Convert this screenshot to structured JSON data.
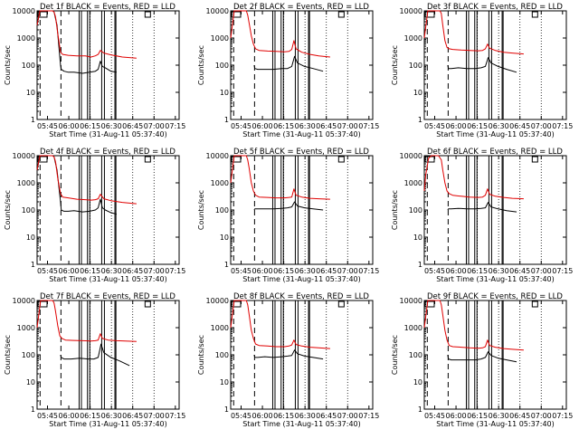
{
  "figure": {
    "x_tick_labels": [
      "05:45",
      "06:00",
      "06:15",
      "06:30",
      "06:45",
      "07:00",
      "07:15"
    ],
    "xlabel": "Start Time (31-Aug-11 05:37:40)",
    "ylabel": "Counts/sec",
    "y_tick_labels": [
      "1",
      "10",
      "100",
      "1000",
      "10000"
    ],
    "colors": {
      "events": "#000000",
      "lld": "#e00000",
      "axes": "#000000"
    }
  },
  "chart_data": [
    {
      "type": "line",
      "title": "Det 1f  BLACK = Events, RED = LLD",
      "xlabel": "Start Time (31-Aug-11 05:37:40)",
      "ylabel": "Counts/sec",
      "ylim": [
        1,
        10000
      ],
      "x_range_minutes": [
        0,
        100
      ],
      "log_y": true,
      "series": [
        {
          "name": "Events",
          "x": [
            0,
            2,
            3.5,
            6,
            9,
            11,
            12,
            14,
            16.5,
            17,
            19,
            22,
            26,
            32,
            37,
            41,
            43,
            44.5,
            46,
            48,
            52,
            56
          ],
          "y": [
            3000,
            10000,
            10000,
            10000,
            10000,
            10000,
            9000,
            3000,
            100,
            70,
            60,
            55,
            55,
            50,
            55,
            60,
            70,
            140,
            90,
            80,
            60,
            55
          ]
        },
        {
          "name": "LLD",
          "x": [
            0,
            2,
            3.5,
            9,
            11,
            12,
            13,
            14.5,
            16.5,
            18,
            22,
            28,
            34,
            38,
            41,
            43,
            44.5,
            47,
            52,
            60,
            70
          ],
          "y": [
            3000,
            10000,
            10000,
            10000,
            10000,
            9000,
            6000,
            1500,
            300,
            250,
            230,
            220,
            220,
            200,
            220,
            250,
            350,
            280,
            240,
            200,
            180
          ]
        }
      ]
    },
    {
      "type": "line",
      "title": "Det 2f  BLACK = Events, RED = LLD",
      "xlabel": "Start Time (31-Aug-11 05:37:40)",
      "ylabel": "Counts/sec",
      "ylim": [
        1,
        10000
      ],
      "x_range_minutes": [
        0,
        100
      ],
      "log_y": true,
      "series": [
        {
          "name": "Events",
          "x": [
            16.5,
            17,
            19,
            24,
            30,
            36,
            40,
            43,
            45,
            47,
            52,
            58,
            65
          ],
          "y": [
            100,
            75,
            70,
            70,
            70,
            75,
            75,
            90,
            210,
            120,
            90,
            75,
            60
          ]
        },
        {
          "name": "LLD",
          "x": [
            0,
            2.5,
            4,
            9,
            11,
            12,
            13,
            14.5,
            16,
            17.5,
            20,
            26,
            32,
            38,
            41,
            43,
            44.5,
            46,
            50,
            56,
            62,
            70
          ],
          "y": [
            1000,
            10000,
            10000,
            10000,
            10000,
            7000,
            3500,
            1200,
            600,
            400,
            350,
            330,
            320,
            310,
            320,
            380,
            800,
            400,
            300,
            250,
            220,
            200
          ]
        }
      ]
    },
    {
      "type": "line",
      "title": "Det 3f  BLACK = Events, RED = LLD",
      "xlabel": "Start Time (31-Aug-11 05:37:40)",
      "ylabel": "Counts/sec",
      "ylim": [
        1,
        10000
      ],
      "x_range_minutes": [
        0,
        100
      ],
      "log_y": true,
      "series": [
        {
          "name": "Events",
          "x": [
            16.5,
            17,
            19,
            24,
            30,
            36,
            40,
            43,
            45,
            47,
            52,
            58,
            65
          ],
          "y": [
            100,
            75,
            75,
            80,
            75,
            75,
            80,
            90,
            190,
            120,
            90,
            70,
            55
          ]
        },
        {
          "name": "LLD",
          "x": [
            0,
            2.5,
            4,
            9,
            11,
            12,
            13,
            14.5,
            16,
            17.5,
            20,
            26,
            32,
            38,
            41,
            43,
            44.5,
            46,
            50,
            56,
            62,
            70
          ],
          "y": [
            1000,
            10000,
            10000,
            10000,
            10000,
            8000,
            3000,
            800,
            450,
            400,
            380,
            360,
            350,
            340,
            350,
            400,
            600,
            420,
            350,
            300,
            280,
            260
          ]
        }
      ]
    },
    {
      "type": "line",
      "title": "Det 4f  BLACK = Events, RED = LLD",
      "xlabel": "Start Time (31-Aug-11 05:37:40)",
      "ylabel": "Counts/sec",
      "ylim": [
        1,
        10000
      ],
      "x_range_minutes": [
        0,
        100
      ],
      "log_y": true,
      "series": [
        {
          "name": "Events",
          "x": [
            0,
            2,
            3.5,
            6,
            9,
            11,
            12,
            14,
            16.5,
            17,
            19,
            22,
            26,
            32,
            37,
            41,
            43,
            44.5,
            46,
            48,
            52,
            56
          ],
          "y": [
            3000,
            10000,
            10000,
            10000,
            10000,
            10000,
            9000,
            3000,
            200,
            100,
            90,
            90,
            95,
            85,
            90,
            100,
            120,
            250,
            120,
            100,
            80,
            70
          ]
        },
        {
          "name": "LLD",
          "x": [
            0,
            2,
            3.5,
            9,
            11,
            12,
            13,
            14.5,
            16.5,
            18,
            22,
            28,
            34,
            38,
            41,
            43,
            44.5,
            47,
            52,
            60,
            70
          ],
          "y": [
            3000,
            10000,
            10000,
            10000,
            10000,
            9000,
            6000,
            1500,
            400,
            300,
            280,
            250,
            240,
            230,
            240,
            260,
            380,
            260,
            220,
            190,
            170
          ]
        }
      ]
    },
    {
      "type": "line",
      "title": "Det 5f  BLACK = Events, RED = LLD",
      "xlabel": "Start Time (31-Aug-11 05:37:40)",
      "ylabel": "Counts/sec",
      "ylim": [
        1,
        10000
      ],
      "x_range_minutes": [
        0,
        100
      ],
      "log_y": true,
      "series": [
        {
          "name": "Events",
          "x": [
            16.5,
            17,
            19,
            24,
            30,
            36,
            40,
            43,
            45,
            47,
            52,
            58,
            65
          ],
          "y": [
            100,
            110,
            110,
            110,
            110,
            115,
            120,
            130,
            200,
            140,
            120,
            110,
            100
          ]
        },
        {
          "name": "LLD",
          "x": [
            0,
            2.5,
            4,
            9,
            11,
            12,
            13,
            14.5,
            16,
            17.5,
            20,
            26,
            32,
            38,
            41,
            43,
            44.5,
            46,
            50,
            56,
            62,
            70
          ],
          "y": [
            1000,
            10000,
            10000,
            10000,
            10000,
            7000,
            3500,
            1000,
            500,
            350,
            300,
            290,
            280,
            280,
            290,
            300,
            600,
            350,
            300,
            270,
            260,
            250
          ]
        }
      ]
    },
    {
      "type": "line",
      "title": "Det 6f  BLACK = Events, RED = LLD",
      "xlabel": "Start Time (31-Aug-11 05:37:40)",
      "ylabel": "Counts/sec",
      "ylim": [
        1,
        10000
      ],
      "x_range_minutes": [
        0,
        100
      ],
      "log_y": true,
      "series": [
        {
          "name": "Events",
          "x": [
            16.5,
            17,
            19,
            24,
            30,
            36,
            40,
            43,
            45,
            47,
            52,
            58,
            65
          ],
          "y": [
            100,
            110,
            110,
            115,
            110,
            110,
            115,
            120,
            190,
            130,
            110,
            95,
            85
          ]
        },
        {
          "name": "LLD",
          "x": [
            0,
            1,
            3,
            5,
            8,
            10,
            12,
            13,
            14.5,
            16,
            17.5,
            20,
            26,
            32,
            38,
            41,
            43,
            44.5,
            46,
            50,
            56,
            62,
            70
          ],
          "y": [
            500,
            2000,
            8000,
            10000,
            10000,
            10000,
            7000,
            3000,
            1000,
            500,
            400,
            350,
            320,
            300,
            290,
            300,
            350,
            600,
            380,
            320,
            290,
            270,
            260
          ]
        }
      ]
    },
    {
      "type": "line",
      "title": "Det 7f  BLACK = Events, RED = LLD",
      "xlabel": "Start Time (31-Aug-11 05:37:40)",
      "ylabel": "Counts/sec",
      "ylim": [
        1,
        10000
      ],
      "x_range_minutes": [
        0,
        100
      ],
      "log_y": true,
      "series": [
        {
          "name": "Events",
          "x": [
            16.5,
            17,
            19,
            24,
            30,
            36,
            40,
            43,
            45,
            47,
            52,
            58,
            65
          ],
          "y": [
            100,
            80,
            70,
            70,
            75,
            70,
            70,
            80,
            250,
            120,
            80,
            60,
            40
          ]
        },
        {
          "name": "LLD",
          "x": [
            0,
            2.5,
            4,
            9,
            11,
            12,
            13,
            14.5,
            16,
            17.5,
            20,
            26,
            32,
            38,
            41,
            43,
            44.5,
            46,
            50,
            56,
            62,
            70
          ],
          "y": [
            1000,
            10000,
            10000,
            10000,
            10000,
            8000,
            4000,
            1200,
            500,
            400,
            350,
            340,
            330,
            320,
            330,
            350,
            600,
            400,
            350,
            330,
            320,
            310
          ]
        }
      ]
    },
    {
      "type": "line",
      "title": "Det 8f  BLACK = Events, RED = LLD",
      "xlabel": "Start Time (31-Aug-11 05:37:40)",
      "ylabel": "Counts/sec",
      "ylim": [
        1,
        10000
      ],
      "x_range_minutes": [
        0,
        100
      ],
      "log_y": true,
      "series": [
        {
          "name": "Events",
          "x": [
            16.5,
            17,
            19,
            24,
            30,
            36,
            40,
            43,
            45,
            47,
            52,
            58,
            65
          ],
          "y": [
            100,
            80,
            80,
            85,
            80,
            85,
            90,
            95,
            150,
            110,
            90,
            80,
            70
          ]
        },
        {
          "name": "LLD",
          "x": [
            0,
            2.5,
            4,
            9,
            11,
            12,
            13,
            14.5,
            16,
            17.5,
            20,
            26,
            32,
            38,
            41,
            43,
            44.5,
            46,
            50,
            56,
            62,
            70
          ],
          "y": [
            1000,
            10000,
            10000,
            10000,
            10000,
            7000,
            3000,
            800,
            400,
            250,
            220,
            210,
            200,
            200,
            210,
            230,
            350,
            240,
            210,
            190,
            180,
            170
          ]
        }
      ]
    },
    {
      "type": "line",
      "title": "Det 9f  BLACK = Events, RED = LLD",
      "xlabel": "Start Time (31-Aug-11 05:37:40)",
      "ylabel": "Counts/sec",
      "ylim": [
        1,
        10000
      ],
      "x_range_minutes": [
        0,
        100
      ],
      "log_y": true,
      "series": [
        {
          "name": "Events",
          "x": [
            16.5,
            17,
            19,
            24,
            30,
            36,
            40,
            43,
            45,
            47,
            52,
            58,
            65
          ],
          "y": [
            100,
            70,
            65,
            65,
            65,
            65,
            70,
            80,
            130,
            95,
            75,
            65,
            55
          ]
        },
        {
          "name": "LLD",
          "x": [
            0,
            2.5,
            4,
            9,
            11,
            12,
            13,
            14.5,
            16,
            17.5,
            20,
            26,
            32,
            38,
            41,
            43,
            44.5,
            46,
            50,
            56,
            62,
            70
          ],
          "y": [
            1000,
            10000,
            10000,
            10000,
            10000,
            7000,
            3000,
            800,
            350,
            220,
            200,
            190,
            180,
            175,
            180,
            200,
            350,
            220,
            190,
            170,
            160,
            150
          ]
        }
      ]
    }
  ]
}
